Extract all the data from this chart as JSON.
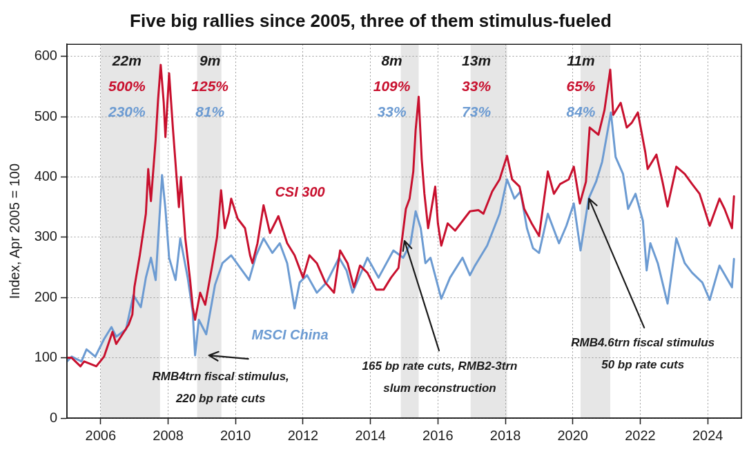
{
  "chart_data": {
    "type": "line",
    "title": "Five big rallies since 2005, three of them stimulus-fueled",
    "ylabel": "Index, Apr 2005 = 100",
    "series": [
      {
        "name": "CSI 300",
        "color": "#c8102e",
        "x": [
          2005.0,
          2005.14,
          2005.4,
          2005.51,
          2005.87,
          2006.1,
          2006.35,
          2006.46,
          2006.83,
          2006.94,
          2007.0,
          2007.16,
          2007.34,
          2007.41,
          2007.49,
          2007.63,
          2007.7,
          2007.78,
          2007.87,
          2007.92,
          2008.03,
          2008.14,
          2008.25,
          2008.32,
          2008.38,
          2008.47,
          2008.51,
          2008.65,
          2008.73,
          2008.8,
          2008.95,
          2009.1,
          2009.32,
          2009.45,
          2009.57,
          2009.68,
          2009.8,
          2009.87,
          2010.06,
          2010.28,
          2010.43,
          2010.5,
          2010.65,
          2010.83,
          2011.02,
          2011.27,
          2011.53,
          2011.75,
          2012.0,
          2012.19,
          2012.41,
          2012.66,
          2012.92,
          2013.1,
          2013.32,
          2013.51,
          2013.69,
          2013.91,
          2014.17,
          2014.39,
          2014.61,
          2014.83,
          2014.94,
          2015.05,
          2015.16,
          2015.27,
          2015.34,
          2015.43,
          2015.52,
          2015.6,
          2015.71,
          2015.92,
          2016.0,
          2016.1,
          2016.29,
          2016.51,
          2016.73,
          2016.95,
          2017.2,
          2017.35,
          2017.61,
          2017.83,
          2018.05,
          2018.2,
          2018.42,
          2018.56,
          2018.78,
          2019.0,
          2019.26,
          2019.44,
          2019.62,
          2019.88,
          2020.03,
          2020.21,
          2020.39,
          2020.5,
          2020.76,
          2020.94,
          2021.11,
          2021.2,
          2021.42,
          2021.6,
          2021.75,
          2021.93,
          2022.15,
          2022.22,
          2022.48,
          2022.66,
          2022.81,
          2023.07,
          2023.32,
          2023.54,
          2023.76,
          2024.06,
          2024.35,
          2024.5,
          2024.72,
          2024.78
        ],
        "values": [
          100,
          100,
          86,
          94,
          86,
          102,
          143,
          123,
          155,
          172,
          217,
          270,
          339,
          413,
          360,
          462,
          527,
          586,
          523,
          466,
          572,
          482,
          400,
          350,
          400,
          330,
          298,
          230,
          184,
          163,
          208,
          188,
          257,
          300,
          378,
          315,
          340,
          364,
          331,
          315,
          270,
          257,
          290,
          353,
          307,
          335,
          290,
          270,
          233,
          270,
          257,
          225,
          208,
          278,
          257,
          217,
          253,
          241,
          213,
          213,
          233,
          249,
          298,
          347,
          364,
          409,
          478,
          533,
          429,
          372,
          315,
          384,
          323,
          286,
          323,
          311,
          327,
          343,
          345,
          339,
          376,
          396,
          435,
          396,
          384,
          347,
          323,
          302,
          409,
          372,
          388,
          396,
          417,
          356,
          392,
          482,
          470,
          511,
          578,
          503,
          523,
          482,
          490,
          507,
          441,
          413,
          437,
          392,
          351,
          417,
          405,
          388,
          372,
          319,
          364,
          347,
          315,
          368
        ]
      },
      {
        "name": "MSCI China",
        "color": "#6c9bd2",
        "x": [
          2005.0,
          2005.14,
          2005.43,
          2005.58,
          2005.84,
          2006.1,
          2006.32,
          2006.46,
          2006.75,
          2006.97,
          2007.19,
          2007.34,
          2007.49,
          2007.63,
          2007.82,
          2007.92,
          2008.03,
          2008.22,
          2008.36,
          2008.58,
          2008.73,
          2008.8,
          2008.91,
          2009.13,
          2009.39,
          2009.61,
          2009.87,
          2010.14,
          2010.4,
          2010.61,
          2010.83,
          2011.09,
          2011.31,
          2011.53,
          2011.75,
          2011.9,
          2012.12,
          2012.41,
          2012.7,
          2013.07,
          2013.29,
          2013.47,
          2013.91,
          2014.24,
          2014.68,
          2014.97,
          2015.19,
          2015.34,
          2015.49,
          2015.63,
          2015.78,
          2016.1,
          2016.36,
          2016.73,
          2016.95,
          2017.1,
          2017.46,
          2017.83,
          2018.05,
          2018.27,
          2018.45,
          2018.64,
          2018.82,
          2019.0,
          2019.26,
          2019.59,
          2019.81,
          2020.03,
          2020.23,
          2020.47,
          2020.69,
          2020.87,
          2021.13,
          2021.27,
          2021.49,
          2021.64,
          2021.86,
          2022.08,
          2022.19,
          2022.3,
          2022.52,
          2022.81,
          2023.07,
          2023.32,
          2023.54,
          2023.84,
          2024.06,
          2024.35,
          2024.72,
          2024.78
        ],
        "values": [
          94,
          102,
          94,
          114,
          102,
          131,
          151,
          135,
          147,
          204,
          184,
          233,
          266,
          229,
          403,
          347,
          266,
          229,
          298,
          233,
          176,
          104,
          163,
          139,
          221,
          257,
          270,
          249,
          229,
          270,
          298,
          274,
          290,
          257,
          182,
          225,
          237,
          208,
          225,
          266,
          245,
          208,
          266,
          233,
          278,
          266,
          290,
          343,
          315,
          257,
          266,
          198,
          233,
          266,
          237,
          253,
          286,
          339,
          396,
          364,
          376,
          315,
          282,
          274,
          339,
          290,
          319,
          356,
          278,
          364,
          392,
          425,
          507,
          433,
          405,
          347,
          372,
          327,
          245,
          290,
          257,
          190,
          298,
          257,
          241,
          225,
          196,
          253,
          217,
          264
        ]
      }
    ],
    "xlim": [
      2005,
      2025
    ],
    "xticks": [
      2006,
      2008,
      2010,
      2012,
      2014,
      2016,
      2018,
      2020,
      2022,
      2024
    ],
    "ylim": [
      0,
      620
    ],
    "yticks": [
      0,
      100,
      200,
      300,
      400,
      500,
      600
    ],
    "grid": true,
    "legend": false,
    "marker": "none",
    "bands": [
      {
        "axis": "x",
        "from": 2006.0,
        "to": 2007.76,
        "label": "22m\n500%\n230%",
        "color": "#e6e6e6"
      },
      {
        "axis": "x",
        "from": 2008.86,
        "to": 2009.58,
        "label": "9m\n125%\n81%",
        "color": "#e6e6e6"
      },
      {
        "axis": "x",
        "from": 2014.9,
        "to": 2015.43,
        "label": "8m\n109%\n33%",
        "color": "#e6e6e6"
      },
      {
        "axis": "x",
        "from": 2016.97,
        "to": 2018.05,
        "label": "13m\n33%\n73%",
        "color": "#e6e6e6"
      },
      {
        "axis": "x",
        "from": 2020.23,
        "to": 2021.11,
        "label": "11m\n65%\n84%",
        "color": "#e6e6e6"
      }
    ],
    "annotations": [
      {
        "text": "RMB4trn fiscal stimulus,\n220 bp rate cuts",
        "x": 2008.8,
        "y": 104
      },
      {
        "text": "165 bp rate cuts, RMB2-3trn\nslum reconstruction",
        "x": 2015.01,
        "y": 294
      },
      {
        "text": "RMB4.6trn fiscal stimulus\n50 bp rate cuts",
        "x": 2020.48,
        "y": 364
      }
    ]
  }
}
